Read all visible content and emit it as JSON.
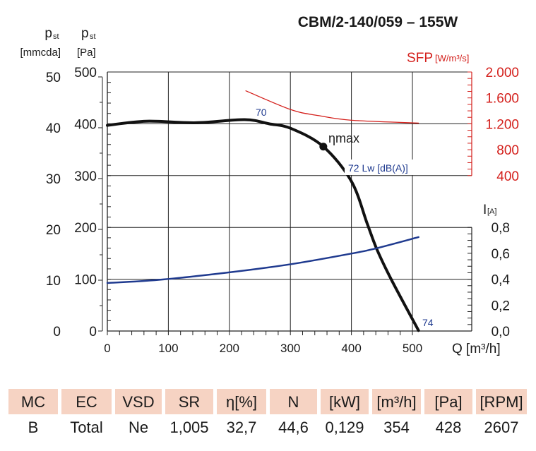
{
  "chart_data": {
    "type": "line",
    "title": "CBM/2-140/059 – 155W",
    "xlabel": "Q [m³/h]",
    "xlim": [
      0,
      500
    ],
    "x_ticks": [
      "0",
      "100",
      "200",
      "300",
      "400",
      "500"
    ],
    "left_axes": [
      {
        "label_main": "p",
        "label_sub": "st",
        "unit": "[mmcda]",
        "ticks": [
          "0",
          "10",
          "20",
          "30",
          "40",
          "50"
        ]
      },
      {
        "label_main": "p",
        "label_sub": "st",
        "unit": "[Pa]",
        "ylim": [
          0,
          500
        ],
        "ticks": [
          "0",
          "100",
          "200",
          "300",
          "400",
          "500"
        ]
      }
    ],
    "right_axes": [
      {
        "label": "SFP",
        "unit": "[W/m³/s]",
        "color": "#d4201c",
        "ticks": [
          "400",
          "800",
          "1.200",
          "1.600",
          "2.000"
        ]
      },
      {
        "label": "I",
        "unit": "[A]",
        "color": "#000000",
        "ticks": [
          "0,0",
          "0,2",
          "0,4",
          "0,6",
          "0,8"
        ]
      }
    ],
    "grid": true,
    "series": [
      {
        "role": "pressure",
        "color": "#111111",
        "x": [
          0,
          64,
          145,
          225,
          265,
          301,
          354,
          400,
          426,
          442,
          466,
          510
        ],
        "y": [
          397,
          405,
          402,
          408,
          400,
          391,
          356,
          289,
          207,
          157,
          98,
          1
        ]
      },
      {
        "role": "sfp",
        "color": "#d4201c",
        "x": [
          227,
          301,
          346,
          400,
          510
        ],
        "y": [
          1709,
          1418,
          1327,
          1255,
          1211
        ]
      },
      {
        "role": "current",
        "color": "#1f3a8f",
        "x": [
          0,
          84,
          200,
          301,
          400,
          442,
          510
        ],
        "y": [
          0.371,
          0.395,
          0.453,
          0.516,
          0.598,
          0.64,
          0.725
        ]
      }
    ],
    "annotations": [
      {
        "text": "ηmax",
        "x": 354,
        "y": 356
      },
      {
        "text": "70",
        "color": "#1f3a8f"
      },
      {
        "text": "72 Lw [dB(A)]",
        "color": "#1f3a8f"
      },
      {
        "text": "74",
        "color": "#1f3a8f"
      }
    ]
  },
  "table": {
    "headers": [
      "MC",
      "EC",
      "VSD",
      "SR",
      "η[%]",
      "N",
      "[kW]",
      "[m³/h]",
      "[Pa]",
      "[RPM]"
    ],
    "values": [
      "B",
      "Total",
      "Ne",
      "1,005",
      "32,7",
      "44,6",
      "0,129",
      "354",
      "428",
      "2607"
    ],
    "header_color": "#f6d3c3"
  }
}
